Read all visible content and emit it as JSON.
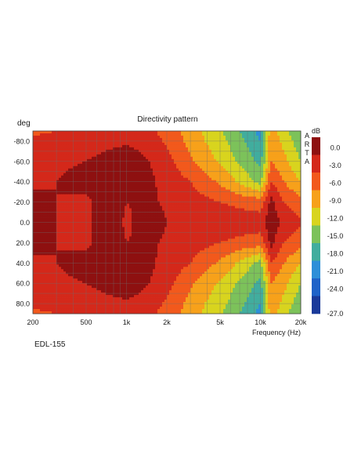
{
  "chart_data": {
    "type": "heatmap",
    "title": "Directivity pattern",
    "ylabel": "deg",
    "xlabel": "Frequency (Hz)",
    "x_scale": "log",
    "xlim": [
      200,
      20000
    ],
    "ylim": [
      -90,
      90
    ],
    "x_ticks": [
      200,
      500,
      1000,
      2000,
      5000,
      10000,
      20000
    ],
    "x_tick_labels": [
      "200",
      "500",
      "1k",
      "2k",
      "5k",
      "10k",
      "20k"
    ],
    "y_ticks": [
      -80,
      -60,
      -40,
      -20,
      0,
      20,
      40,
      60,
      80
    ],
    "y_tick_labels": [
      "-80.0",
      "-60.0",
      "-40.0",
      "-20.0",
      "0.0",
      "20.0",
      "40.0",
      "60.0",
      "80.0"
    ],
    "grid": true,
    "colorbar": {
      "unit": "dB",
      "watermark": "ARTA",
      "levels": [
        {
          "label": "0.0",
          "color": "#8e1010"
        },
        {
          "label": "-3.0",
          "color": "#d4281a"
        },
        {
          "label": "-6.0",
          "color": "#f2591c"
        },
        {
          "label": "-9.0",
          "color": "#f7a11a"
        },
        {
          "label": "-12.0",
          "color": "#d8d41e"
        },
        {
          "label": "-15.0",
          "color": "#7cc25a"
        },
        {
          "label": "-18.0",
          "color": "#41ad9e"
        },
        {
          "label": "-21.0",
          "color": "#2d8fd8"
        },
        {
          "label": "-24.0",
          "color": "#1f63c8"
        },
        {
          "label": "-27.0",
          "color": "#1a3a9a"
        }
      ]
    },
    "z_grid": {
      "unit": "dB",
      "x": [
        200,
        300,
        500,
        700,
        1000,
        1500,
        2000,
        3000,
        5000,
        7000,
        10000,
        12000,
        15000,
        20000
      ],
      "y": [
        -90,
        -80,
        -60,
        -40,
        -20,
        0,
        20,
        40,
        60,
        80,
        90
      ],
      "z": [
        [
          -6.5,
          -6,
          -5.5,
          -5,
          -5,
          -5.5,
          -7,
          -10.5,
          -14.5,
          -18,
          -22,
          -10,
          -14,
          -18
        ],
        [
          -5.5,
          -5,
          -4.5,
          -4,
          -3.5,
          -4.5,
          -6.5,
          -10,
          -14,
          -17,
          -21,
          -9.5,
          -13,
          -17
        ],
        [
          -5,
          -4,
          -3,
          -2,
          -1,
          -3,
          -5,
          -8.5,
          -12.5,
          -15.5,
          -19,
          -9,
          -11,
          -15
        ],
        [
          -4,
          -3,
          -1,
          -2,
          -1,
          -2.5,
          -4,
          -6,
          -9.5,
          -12.5,
          -16,
          -6,
          -9,
          -12
        ],
        [
          -1,
          -3,
          -4,
          -1,
          -3,
          -2.5,
          -3.5,
          -4.5,
          -6,
          -7,
          -7.5,
          -2,
          -6,
          -8
        ],
        [
          -1,
          -3,
          -4,
          -1,
          -3.5,
          -1.5,
          -3,
          -3,
          -3.5,
          -4,
          -4.5,
          -1,
          -4,
          -5.5
        ],
        [
          -1,
          -3,
          -4,
          -1,
          -3,
          -2.5,
          -3.5,
          -4.5,
          -6,
          -7,
          -7.5,
          -2,
          -6,
          -8
        ],
        [
          -4,
          -3,
          -1,
          -2,
          -1,
          -2.5,
          -4,
          -6,
          -9.5,
          -12.5,
          -16,
          -6,
          -9,
          -12
        ],
        [
          -5,
          -4,
          -3,
          -2,
          -1,
          -3,
          -5,
          -8.5,
          -12.5,
          -15.5,
          -19,
          -9,
          -11,
          -15
        ],
        [
          -5.5,
          -5,
          -4.5,
          -4,
          -3.5,
          -4.5,
          -6.5,
          -10,
          -14,
          -17,
          -21,
          -9.5,
          -13,
          -17
        ],
        [
          -6.5,
          -6,
          -5.5,
          -5,
          -5,
          -5.5,
          -7,
          -10.5,
          -14.5,
          -18,
          -22,
          -10,
          -14,
          -18
        ]
      ]
    },
    "caption": "EDL-155"
  }
}
